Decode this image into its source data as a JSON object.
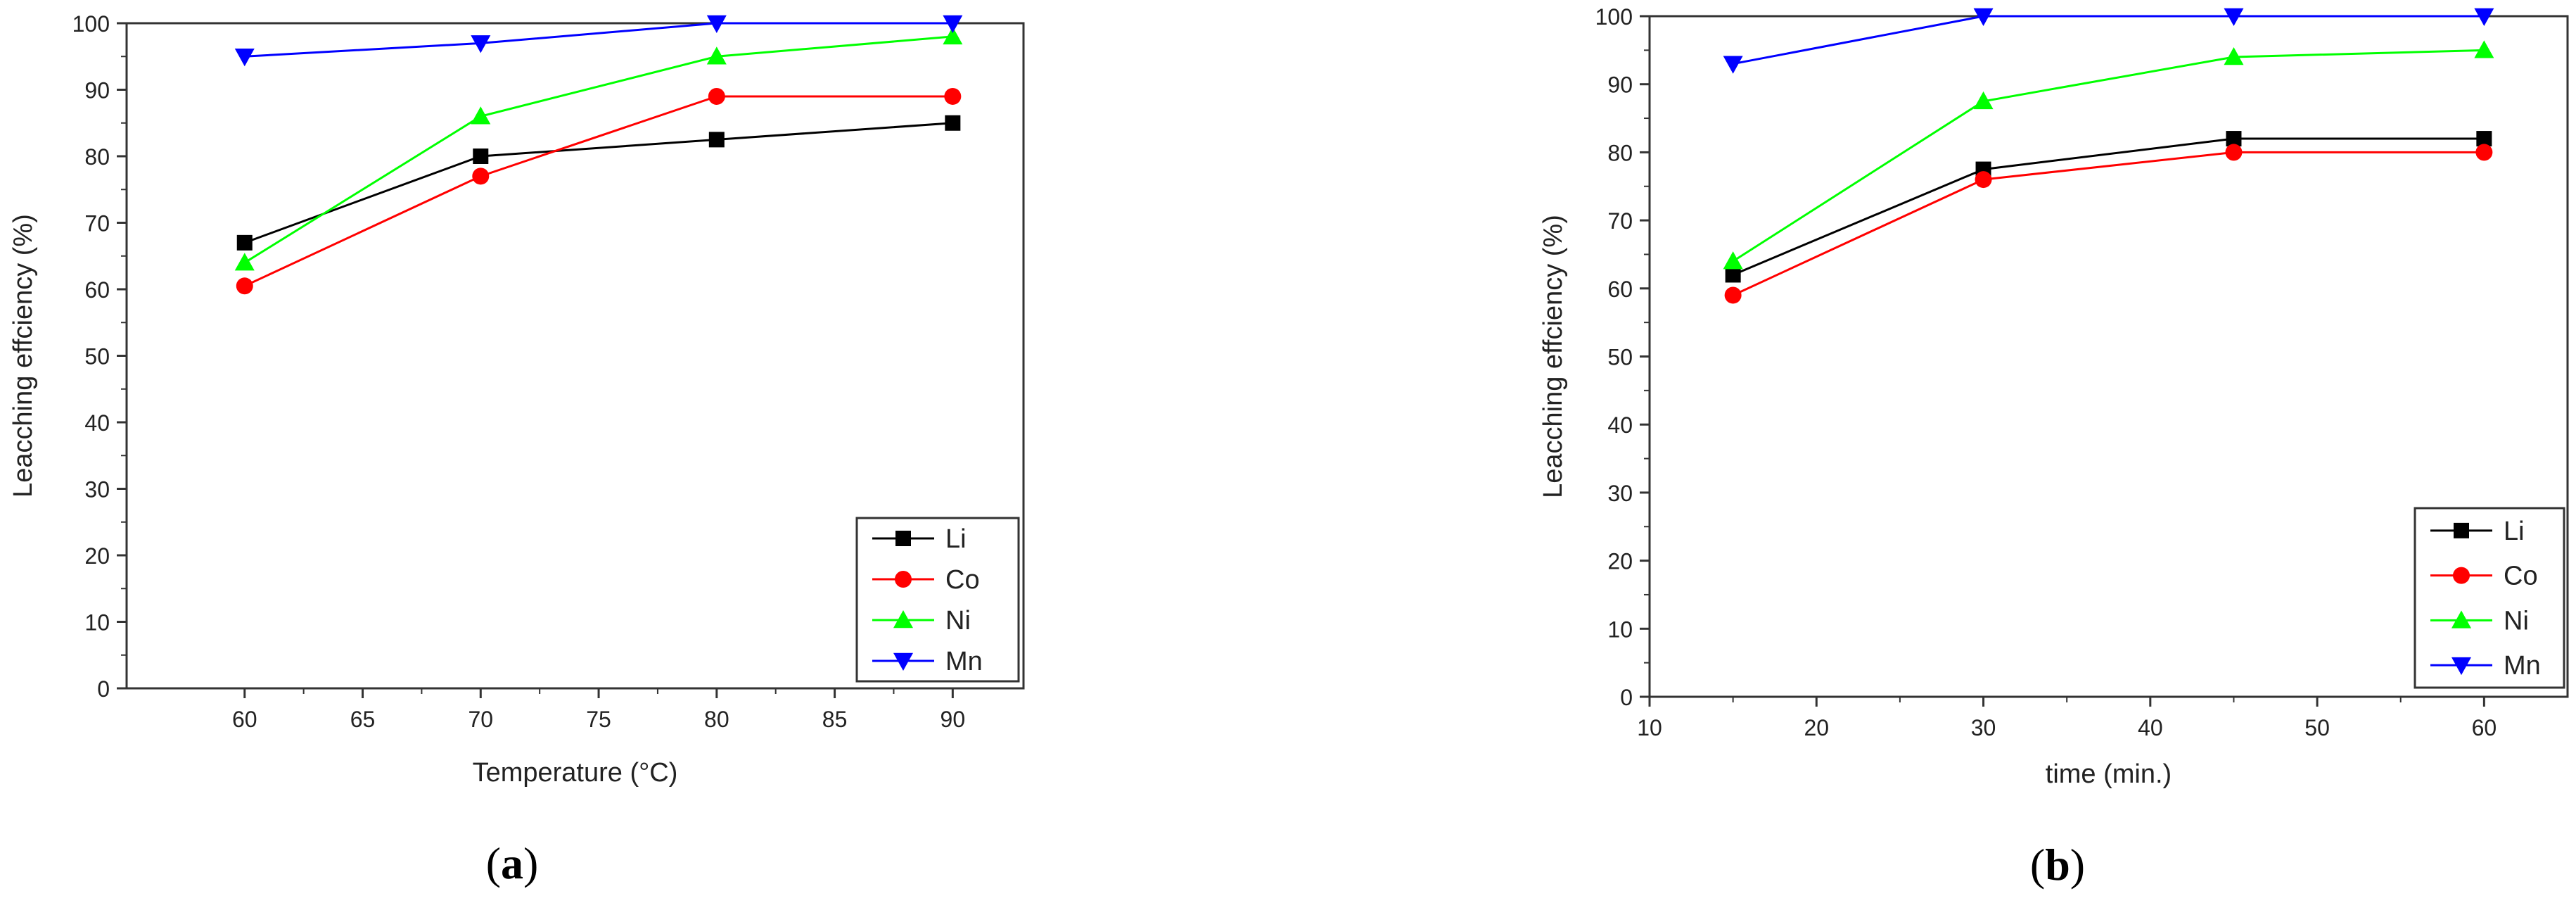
{
  "colors": {
    "Li": "#000000",
    "Co": "#ff0000",
    "Ni": "#00ff00",
    "Mn": "#0000ff"
  },
  "chart_data": [
    {
      "type": "line",
      "panel_label": "(a)",
      "xlabel": "Temperature (°C)",
      "ylabel": "Leacching effciency (%)",
      "xlim": [
        55,
        93
      ],
      "ylim": [
        0,
        100
      ],
      "xticks": [
        60,
        65,
        70,
        75,
        80,
        85,
        90
      ],
      "yticks": [
        0,
        10,
        20,
        30,
        40,
        50,
        60,
        70,
        80,
        90,
        100
      ],
      "x": [
        60,
        70,
        80,
        90
      ],
      "legend_position": "bottom-right",
      "series": [
        {
          "name": "Li",
          "marker": "square",
          "values": [
            67,
            80,
            82.5,
            85
          ]
        },
        {
          "name": "Co",
          "marker": "circle",
          "values": [
            60.5,
            77,
            89,
            89
          ]
        },
        {
          "name": "Ni",
          "marker": "triangle-up",
          "values": [
            64,
            86,
            95,
            98
          ]
        },
        {
          "name": "Mn",
          "marker": "triangle-down",
          "values": [
            95,
            97,
            100,
            100
          ]
        }
      ]
    },
    {
      "type": "line",
      "panel_label": "(b)",
      "xlabel": "time (min.)",
      "ylabel": "Leacching effciency (%)",
      "xlim": [
        10,
        65
      ],
      "ylim": [
        0,
        100
      ],
      "xticks": [
        10,
        20,
        30,
        40,
        50,
        60
      ],
      "yticks": [
        0,
        10,
        20,
        30,
        40,
        50,
        60,
        70,
        80,
        90,
        100
      ],
      "x": [
        15,
        30,
        45,
        60
      ],
      "legend_position": "bottom-right",
      "series": [
        {
          "name": "Li",
          "marker": "square",
          "values": [
            62,
            77.5,
            82,
            82
          ]
        },
        {
          "name": "Co",
          "marker": "circle",
          "values": [
            59,
            76,
            80,
            80
          ]
        },
        {
          "name": "Ni",
          "marker": "triangle-up",
          "values": [
            64,
            87.5,
            94,
            95
          ]
        },
        {
          "name": "Mn",
          "marker": "triangle-down",
          "values": [
            93,
            100,
            100,
            100
          ]
        }
      ]
    }
  ]
}
